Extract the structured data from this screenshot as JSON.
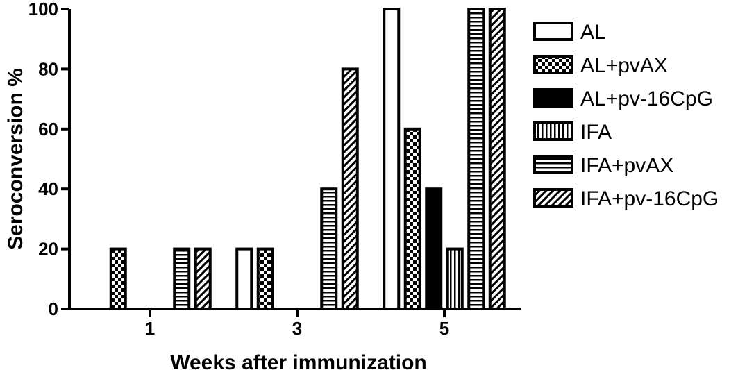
{
  "chart_data": {
    "type": "bar",
    "title": "",
    "xlabel": "Weeks after immunization",
    "ylabel": "Seroconversion %",
    "categories": [
      "1",
      "3",
      "5"
    ],
    "ylim": [
      0,
      100
    ],
    "yticks": [
      "0",
      "20",
      "40",
      "60",
      "80",
      "100"
    ],
    "grid": false,
    "legend_position": "right",
    "series": [
      {
        "name": "AL",
        "values": [
          0,
          20,
          100
        ],
        "pattern": "empty",
        "color": "#000000"
      },
      {
        "name": "AL+pvAX",
        "values": [
          20,
          20,
          60
        ],
        "pattern": "checker",
        "color": "#000000"
      },
      {
        "name": "AL+pv-16CpG",
        "values": [
          0,
          0,
          40
        ],
        "pattern": "solid",
        "color": "#000000"
      },
      {
        "name": "IFA",
        "values": [
          0,
          0,
          20
        ],
        "pattern": "vertical-lines",
        "color": "#000000"
      },
      {
        "name": "IFA+pvAX",
        "values": [
          20,
          40,
          100
        ],
        "pattern": "horizontal-lines",
        "color": "#000000"
      },
      {
        "name": "IFA+pv-16CpG",
        "values": [
          20,
          80,
          100
        ],
        "pattern": "diagonal-lines",
        "color": "#000000"
      }
    ]
  }
}
